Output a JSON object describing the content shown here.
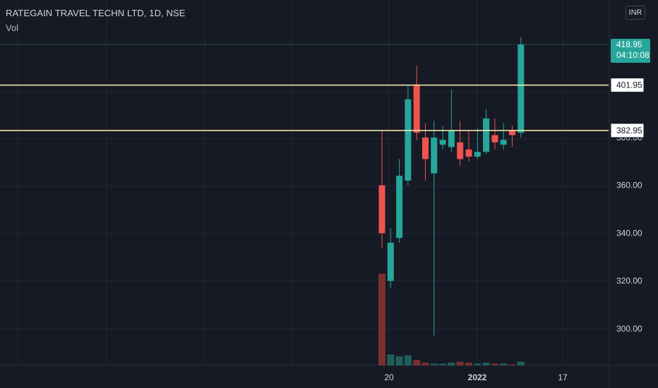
{
  "legend": {
    "title": "RATEGAIN TRAVEL TECHN LTD, 1D, NSE",
    "volume_label": "Vol"
  },
  "currency": "INR",
  "colors": {
    "background": "#161a25",
    "grid": "#232734",
    "up": "#26a69a",
    "down": "#ef5350",
    "volume_up": "#1f5f5b",
    "volume_down": "#7a2f30",
    "horizontal_line": "#fff3b0",
    "text": "#d1d4dc"
  },
  "chart_data": {
    "type": "candlestick",
    "title": "RATEGAIN TRAVEL TECHN LTD, 1D, NSE",
    "y_axis": {
      "ticks": [
        "300.00",
        "320.00",
        "340.00",
        "360.00",
        "380.00"
      ],
      "range": [
        285,
        426
      ]
    },
    "x_axis": {
      "tick_labels": [
        "20",
        "2022",
        "17"
      ]
    },
    "last_price": {
      "value": "418.95",
      "countdown": "04:10:08"
    },
    "horizontal_lines": [
      {
        "label": "401.95",
        "value": 401.95
      },
      {
        "label": "382.95",
        "value": 382.95
      }
    ],
    "candles": [
      {
        "o": 360.0,
        "h": 383.0,
        "l": 334.0,
        "c": 340.0,
        "v": 100
      },
      {
        "o": 320.0,
        "h": 342.0,
        "l": 317.0,
        "c": 336.0,
        "v": 12
      },
      {
        "o": 338.0,
        "h": 371.0,
        "l": 336.0,
        "c": 364.0,
        "v": 10
      },
      {
        "o": 362.0,
        "h": 402.0,
        "l": 360.0,
        "c": 396.0,
        "v": 11
      },
      {
        "o": 402.0,
        "h": 410.0,
        "l": 379.0,
        "c": 382.0,
        "v": 6
      },
      {
        "o": 380.0,
        "h": 386.0,
        "l": 362.0,
        "c": 371.0,
        "v": 3
      },
      {
        "o": 365.0,
        "h": 387.0,
        "l": 297.0,
        "c": 380.0,
        "v": 2
      },
      {
        "o": 377.0,
        "h": 385.0,
        "l": 375.0,
        "c": 379.0,
        "v": 2
      },
      {
        "o": 376.0,
        "h": 400.0,
        "l": 374.0,
        "c": 383.0,
        "v": 3
      },
      {
        "o": 378.0,
        "h": 387.0,
        "l": 368.0,
        "c": 371.0,
        "v": 4
      },
      {
        "o": 375.0,
        "h": 383.0,
        "l": 370.0,
        "c": 372.0,
        "v": 3
      },
      {
        "o": 372.0,
        "h": 384.0,
        "l": 371.0,
        "c": 374.0,
        "v": 2
      },
      {
        "o": 374.0,
        "h": 392.0,
        "l": 373.0,
        "c": 388.0,
        "v": 3
      },
      {
        "o": 381.0,
        "h": 388.0,
        "l": 375.0,
        "c": 378.0,
        "v": 2
      },
      {
        "o": 377.0,
        "h": 386.0,
        "l": 375.0,
        "c": 379.0,
        "v": 2
      },
      {
        "o": 383.0,
        "h": 385.0,
        "l": 376.0,
        "c": 381.0,
        "v": 1
      },
      {
        "o": 382.0,
        "h": 422.0,
        "l": 380.0,
        "c": 418.95,
        "v": 4
      }
    ]
  }
}
